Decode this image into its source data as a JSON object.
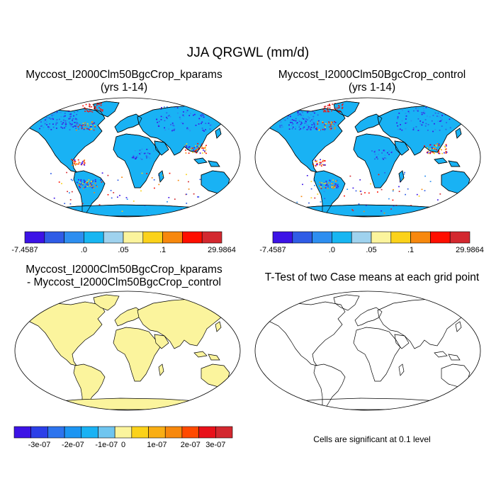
{
  "figure": {
    "title": "JJA QRGWL (mm/d)",
    "panels": [
      {
        "id": "top-left",
        "title_line1": "Myccost_I2000Clm50BgcCrop_kparams",
        "title_line2": "(yrs 1-14)",
        "field": "mean"
      },
      {
        "id": "top-right",
        "title_line1": "Myccost_I2000Clm50BgcCrop_control",
        "title_line2": "(yrs 1-14)",
        "field": "mean"
      },
      {
        "id": "bottom-left",
        "title_line1": "Myccost_I2000Clm50BgcCrop_kparams",
        "title_line2": "- Myccost_I2000Clm50BgcCrop_control",
        "field": "difference"
      },
      {
        "id": "bottom-right",
        "title_line1": "T-Test of two Case means at each grid point",
        "field": "significance"
      }
    ],
    "significance_note": "Cells are significant at 0.1 level"
  },
  "colorbars": {
    "mean": {
      "colors": [
        "#3c13e6",
        "#2f5ce6",
        "#2d8ef0",
        "#17b6f2",
        "#9fd2ee",
        "#fbf49d",
        "#fbd21a",
        "#f7880d",
        "#ff0e00",
        "#d3282f"
      ],
      "labels": [
        "-7.4587",
        ".0",
        ".05",
        ".1",
        "29.9864"
      ],
      "label_boundary_index": [
        0,
        3,
        5,
        7,
        10
      ]
    },
    "difference": {
      "colors": [
        "#3c13e6",
        "#2b3fe8",
        "#2d74ee",
        "#1c95f2",
        "#19b2f4",
        "#6fc5ef",
        "#fbf49d",
        "#fbd21a",
        "#f9ae14",
        "#f7880d",
        "#ff4a00",
        "#e8111a",
        "#d3282f"
      ],
      "labels": [
        "-3e-07",
        "-2e-07",
        "-1e-07",
        "0",
        "1e-07",
        "2e-07",
        "3e-07"
      ]
    }
  },
  "map": {
    "projection": "Robinson",
    "ocean_color": "#ffffff",
    "mean_land_color": "#19b2f4",
    "difference_land_color": "#fbf49d",
    "coastline_color": "#000000"
  }
}
